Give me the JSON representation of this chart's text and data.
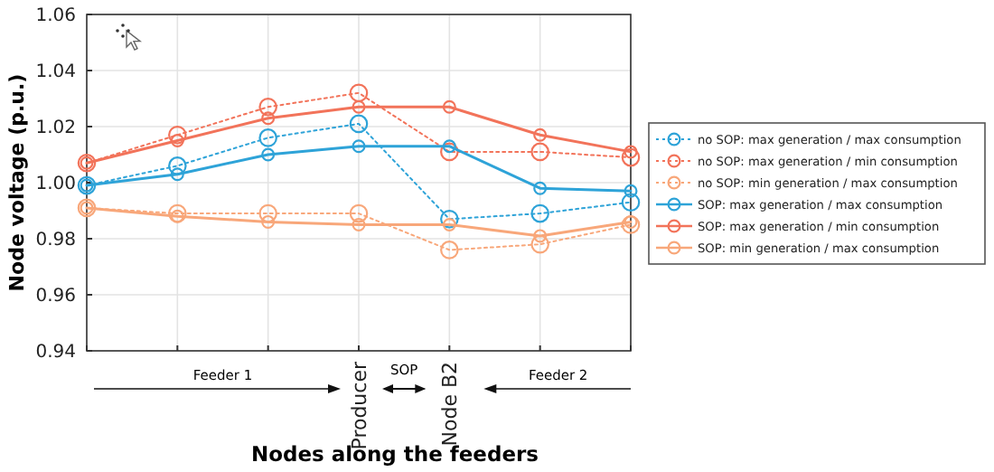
{
  "chart_data": {
    "type": "line",
    "xlabel": "Nodes along the feeders",
    "ylabel": "Node voltage (p.u.)",
    "categories": [
      null,
      null,
      null,
      "Producer",
      "Node B2",
      null,
      null
    ],
    "ylim": [
      0.94,
      1.06
    ],
    "yticks": [
      {
        "value": 0.94,
        "label": "0.94"
      },
      {
        "value": 0.96,
        "label": "0.96"
      },
      {
        "value": 0.98,
        "label": "0.98"
      },
      {
        "value": 1.0,
        "label": "1.00"
      },
      {
        "value": 1.02,
        "label": "1.02"
      },
      {
        "value": 1.04,
        "label": "1.04"
      },
      {
        "value": 1.06,
        "label": "1.06"
      }
    ],
    "grid": true,
    "legend": "right",
    "marker": "circle",
    "annotations": [
      "Feeder 1",
      "SOP",
      "Feeder 2"
    ],
    "series": [
      {
        "name": "no SOP: max generation / max consumption",
        "color": "#2ea3d8",
        "line_style": "dotted",
        "values": [
          0.999,
          1.006,
          1.016,
          1.021,
          0.987,
          0.989,
          0.993
        ]
      },
      {
        "name": "no SOP: max generation / min consumption",
        "color": "#f2735a",
        "line_style": "dotted",
        "values": [
          1.007,
          1.017,
          1.027,
          1.032,
          1.011,
          1.011,
          1.009
        ]
      },
      {
        "name": "no SOP: min generation / max consumption",
        "color": "#f8a77a",
        "line_style": "dotted",
        "values": [
          0.991,
          0.989,
          0.989,
          0.989,
          0.976,
          0.978,
          0.985
        ]
      },
      {
        "name": "SOP: max generation / max consumption",
        "color": "#2ea3d8",
        "line_style": "solid",
        "values": [
          0.999,
          1.003,
          1.01,
          1.013,
          1.013,
          0.998,
          0.997
        ]
      },
      {
        "name": "SOP: max generation / min consumption",
        "color": "#f2735a",
        "line_style": "solid",
        "values": [
          1.007,
          1.015,
          1.023,
          1.027,
          1.027,
          1.017,
          1.011
        ]
      },
      {
        "name": "SOP: min generation / max consumption",
        "color": "#f8a77a",
        "line_style": "solid",
        "values": [
          0.991,
          0.988,
          0.986,
          0.985,
          0.985,
          0.981,
          0.986
        ]
      }
    ]
  }
}
